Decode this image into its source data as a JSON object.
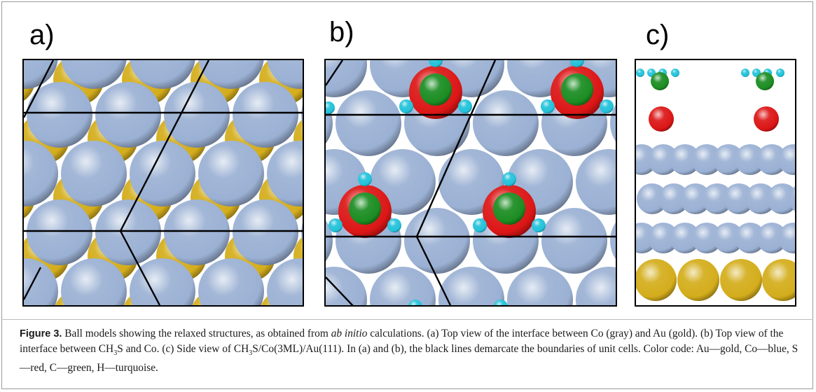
{
  "panels": [
    {
      "label": "a)"
    },
    {
      "label": "b)"
    },
    {
      "label": "c)"
    }
  ],
  "colors": {
    "Au": "#d4ad1c",
    "Co": "#9bb1d4",
    "S": "#dc1616",
    "C": "#1b8d22",
    "H": "#22c2da",
    "cell_lines": "#000000"
  },
  "caption": {
    "figure_label": "Figure 3.",
    "part1": " Ball models showing the relaxed structures, as obtained from ",
    "italic": "ab initio",
    "part2": " calculations. (a) Top view of the interface between Co (gray) and Au (gold). (b) Top view of the interface between CH",
    "sub1": "3",
    "part3": "S and Co. (c) Side view of CH",
    "sub2": "3",
    "part4": "S/Co(3ML)/Au(111). In (a) and (b), the black lines demarcate the boundaries of unit cells. Color code: Au—gold, Co—blue, S—red, C—green, H—turquoise."
  }
}
